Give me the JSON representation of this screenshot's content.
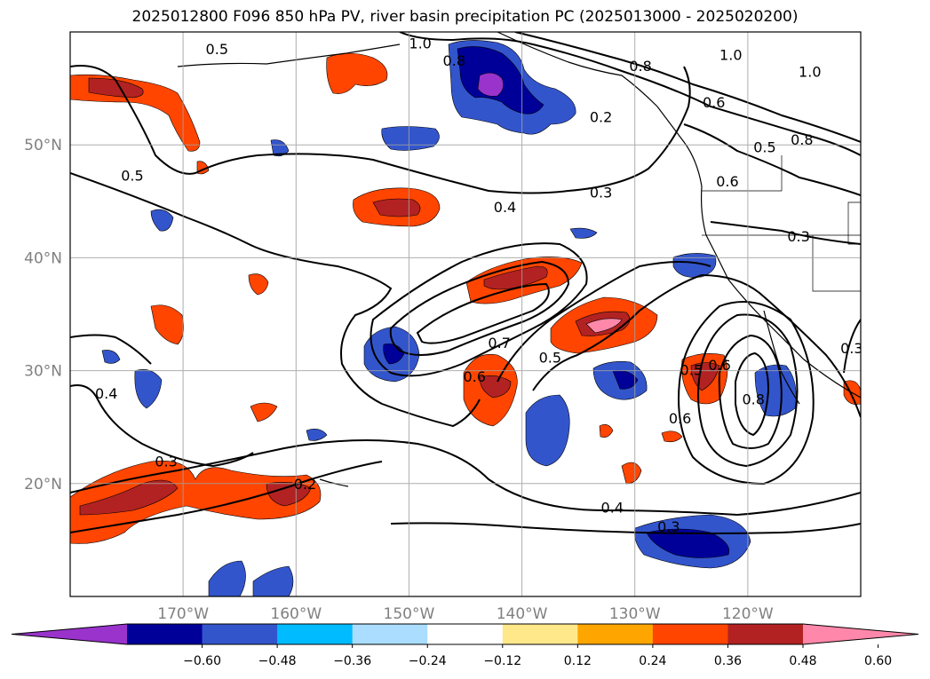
{
  "title": "2025012800 F096 850 hPa PV, river basin precipitation PC (2025013000 - 2025020200)",
  "map": {
    "lat_labels": [
      {
        "label": "50°N",
        "lat": 50
      },
      {
        "label": "40°N",
        "lat": 40
      },
      {
        "label": "30°N",
        "lat": 30
      },
      {
        "label": "20°N",
        "lat": 20
      }
    ],
    "lon_labels": [
      {
        "label": "170°W",
        "lon": -170
      },
      {
        "label": "160°W",
        "lon": -160
      },
      {
        "label": "150°W",
        "lon": -150
      },
      {
        "label": "140°W",
        "lon": -140
      },
      {
        "label": "130°W",
        "lon": -130
      },
      {
        "label": "120°W",
        "lon": -120
      }
    ],
    "extent": {
      "lon_min": -180,
      "lon_max": -110,
      "lat_min": 10,
      "lat_max": 60
    },
    "gridlines": true
  },
  "colorbar": {
    "ticks": [
      "−0.60",
      "−0.48",
      "−0.36",
      "−0.24",
      "−0.12",
      "0.12",
      "0.24",
      "0.36",
      "0.48",
      "0.60"
    ],
    "colors": [
      "#9933cc",
      "#000099",
      "#3355cc",
      "#00bbff",
      "#aaddff",
      "#ffffff",
      "#ffe88a",
      "#ffa500",
      "#ff4500",
      "#b22222",
      "#ff88aa"
    ],
    "extend": "both"
  },
  "contour_labels": [
    {
      "text": "1.0",
      "lon": -149,
      "lat": 59
    },
    {
      "text": "0.5",
      "lon": -167,
      "lat": 58.5
    },
    {
      "text": "0.8",
      "lon": -146,
      "lat": 57.5
    },
    {
      "text": "0.8",
      "lon": -129.5,
      "lat": 57
    },
    {
      "text": "1.0",
      "lon": -121.5,
      "lat": 58
    },
    {
      "text": "1.0",
      "lon": -114.5,
      "lat": 56.5
    },
    {
      "text": "0.6",
      "lon": -123,
      "lat": 53.8
    },
    {
      "text": "0.2",
      "lon": -133,
      "lat": 52.5
    },
    {
      "text": "0.5",
      "lon": -118.5,
      "lat": 49.8
    },
    {
      "text": "0.8",
      "lon": -115.2,
      "lat": 50.5
    },
    {
      "text": "0.6",
      "lon": -121.8,
      "lat": 46.8
    },
    {
      "text": "0.3",
      "lon": -133,
      "lat": 45.8
    },
    {
      "text": "0.4",
      "lon": -141.5,
      "lat": 44.5
    },
    {
      "text": "0.5",
      "lon": -174.5,
      "lat": 47.3
    },
    {
      "text": "0.3",
      "lon": -115.5,
      "lat": 41.9
    },
    {
      "text": "0.7",
      "lon": -142,
      "lat": 32.5
    },
    {
      "text": "0.6",
      "lon": -144.2,
      "lat": 29.5
    },
    {
      "text": "0.5",
      "lon": -137.5,
      "lat": 31.2
    },
    {
      "text": "0.5",
      "lon": -125,
      "lat": 30.1
    },
    {
      "text": "0.6",
      "lon": -122.5,
      "lat": 30.5
    },
    {
      "text": "0.6",
      "lon": -126,
      "lat": 25.8
    },
    {
      "text": "0.8",
      "lon": -119.5,
      "lat": 27.5
    },
    {
      "text": "0.4",
      "lon": -176.8,
      "lat": 28
    },
    {
      "text": "0.3",
      "lon": -171.5,
      "lat": 22
    },
    {
      "text": "0.2",
      "lon": -159.2,
      "lat": 20
    },
    {
      "text": "0.4",
      "lon": -132,
      "lat": 17.9
    },
    {
      "text": "0.3",
      "lon": -127,
      "lat": 16.2
    },
    {
      "text": "0.3",
      "lon": -110.8,
      "lat": 32
    }
  ]
}
